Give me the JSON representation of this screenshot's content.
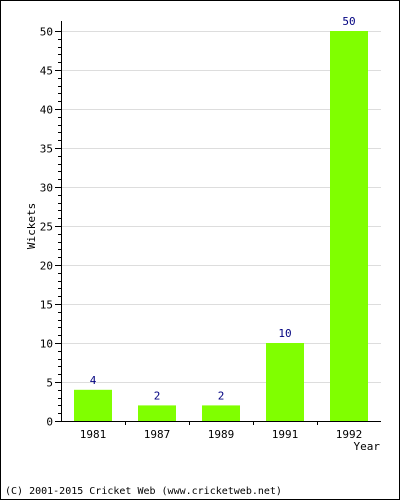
{
  "chart_data": {
    "type": "bar",
    "categories": [
      "1981",
      "1987",
      "1989",
      "1991",
      "1992"
    ],
    "values": [
      4,
      2,
      2,
      10,
      50
    ],
    "data_labels": [
      "4",
      "2",
      "2",
      "10",
      "50"
    ],
    "title": "",
    "xlabel": "Year",
    "ylabel": "Wickets",
    "ylim": [
      0,
      50
    ],
    "yticks": [
      0,
      5,
      10,
      15,
      20,
      25,
      30,
      35,
      40,
      45,
      50
    ],
    "ytick_labels": [
      "0",
      "5",
      "10",
      "15",
      "20",
      "25",
      "30",
      "35",
      "40",
      "45",
      "50"
    ],
    "grid": true,
    "bar_color": "#80ff00",
    "label_color": "#000080",
    "grid_color": "#dddddd"
  },
  "footer": {
    "copyright": "(C) 2001-2015 Cricket Web (www.cricketweb.net)"
  }
}
